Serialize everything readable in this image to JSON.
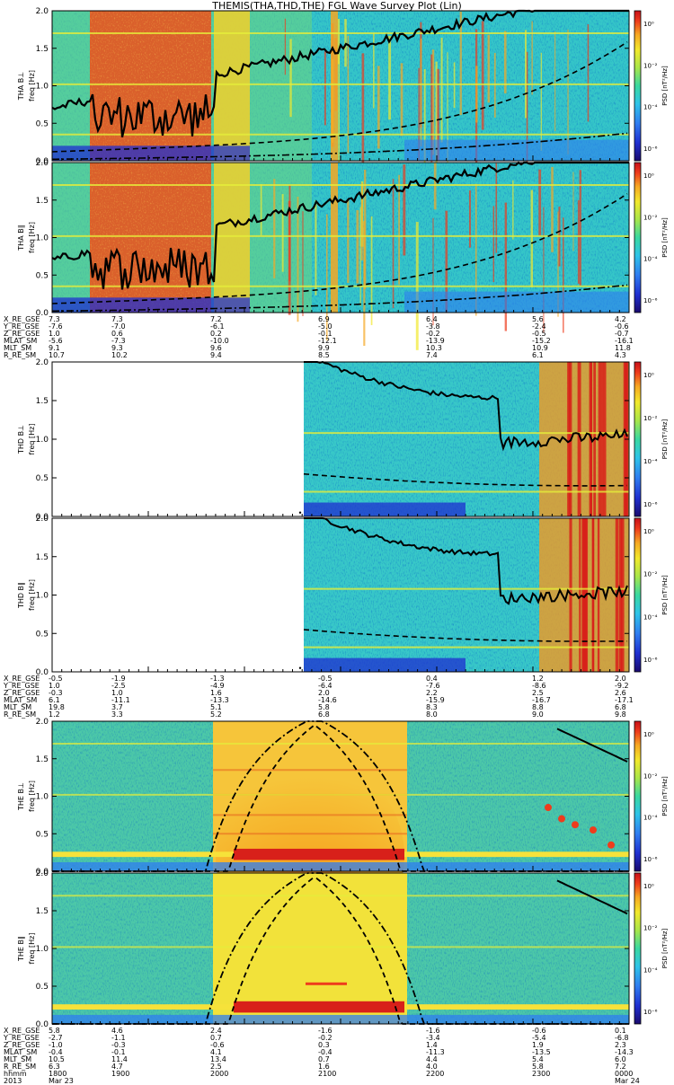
{
  "title": "THEMIS(THA,THD,THE) FGL Wave Survey Plot (Lin)",
  "colorbar_unit": "PSD [nT²/Hz]",
  "colorbar_ticks": [
    "10⁰",
    "10⁻²",
    "10⁻⁴",
    "10⁻⁶"
  ],
  "axis_ylabel": "freq [Hz]",
  "y_ticks": [
    "0.0",
    "0.5",
    "1.0",
    "1.5",
    "2.0"
  ],
  "chart_data": [
    {
      "type": "heatmap",
      "panel_id": "THA B⊥",
      "ylabel": "freq [Hz]",
      "ylim": [
        0,
        2
      ],
      "colorbar": "PSD [nT²/Hz]",
      "lines": [
        "solid",
        "dashed",
        "dash-dot"
      ]
    },
    {
      "type": "heatmap",
      "panel_id": "THA B∥",
      "ylabel": "freq [Hz]",
      "ylim": [
        0,
        2
      ],
      "colorbar": "PSD [nT²/Hz]",
      "lines": [
        "solid",
        "dashed",
        "dash-dot"
      ]
    },
    {
      "type": "heatmap",
      "panel_id": "THD B⊥",
      "ylabel": "freq [Hz]",
      "ylim": [
        0,
        2
      ],
      "colorbar": "PSD [nT²/Hz]",
      "lines": [
        "solid",
        "dashed",
        "dash-dot"
      ]
    },
    {
      "type": "heatmap",
      "panel_id": "THD B∥",
      "ylabel": "freq [Hz]",
      "ylim": [
        0,
        2
      ],
      "colorbar": "PSD [nT²/Hz]",
      "lines": [
        "solid",
        "dashed",
        "dash-dot"
      ]
    },
    {
      "type": "heatmap",
      "panel_id": "THE B⊥",
      "ylabel": "freq [Hz]",
      "ylim": [
        0,
        2
      ],
      "colorbar": "PSD [nT²/Hz]",
      "lines": [
        "solid",
        "dashed",
        "dash-dot"
      ]
    },
    {
      "type": "heatmap",
      "panel_id": "THE B∥",
      "ylabel": "freq [Hz]",
      "ylim": [
        0,
        2
      ],
      "colorbar": "PSD [nT²/Hz]",
      "lines": [
        "solid",
        "dashed",
        "dash-dot"
      ]
    }
  ],
  "ephemeris_blocks": [
    {
      "rows": [
        {
          "label": "X_RE_GSE",
          "values": [
            "7.3",
            "7.3",
            "7.2",
            "6.9",
            "6.4",
            "5.6",
            "4.2"
          ]
        },
        {
          "label": "Y_RE_GSE",
          "values": [
            "-7.6",
            "-7.0",
            "-6.1",
            "-5.0",
            "-3.8",
            "-2.4",
            "-0.6"
          ]
        },
        {
          "label": "Z_RE_GSE",
          "values": [
            "1.0",
            "0.6",
            "0.2",
            "-0.1",
            "-0.2",
            "-0.5",
            "-0.7"
          ]
        },
        {
          "label": "MLAT_SM",
          "values": [
            "-5.6",
            "-7.3",
            "-10.0",
            "-12.1",
            "-13.9",
            "-15.2",
            "-16.1"
          ]
        },
        {
          "label": "MLT_SM",
          "values": [
            "9.1",
            "9.3",
            "9.6",
            "9.9",
            "10.3",
            "10.9",
            "11.8"
          ]
        },
        {
          "label": "R_RE_SM",
          "values": [
            "10.7",
            "10.2",
            "9.4",
            "8.5",
            "7.4",
            "6.1",
            "4.3"
          ]
        }
      ]
    },
    {
      "rows": [
        {
          "label": "X_RE_GSE",
          "values": [
            "-0.5",
            "-1.9",
            "-1.3",
            "-0.5",
            "0.4",
            "1.2",
            "2.0"
          ]
        },
        {
          "label": "Y_RE_GSE",
          "values": [
            "1.0",
            "-2.5",
            "-4.9",
            "-6.4",
            "-7.6",
            "-8.6",
            "-9.2"
          ]
        },
        {
          "label": "Z_RE_GSE",
          "values": [
            "-0.3",
            "1.0",
            "1.6",
            "2.0",
            "2.2",
            "2.5",
            "2.6"
          ]
        },
        {
          "label": "MLAT_SM",
          "values": [
            "6.1",
            "-11.1",
            "-13.3",
            "-14.6",
            "-15.9",
            "-16.7",
            "-17.1"
          ]
        },
        {
          "label": "MLT_SM",
          "values": [
            "19.8",
            "3.7",
            "5.1",
            "5.8",
            "8.3",
            "8.8",
            "6.8"
          ]
        },
        {
          "label": "R_RE_SM",
          "values": [
            "1.2",
            "3.3",
            "5.2",
            "6.8",
            "8.0",
            "9.0",
            "9.8"
          ]
        }
      ]
    },
    {
      "rows": [
        {
          "label": "X_RE_GSE",
          "values": [
            "5.8",
            "4.6",
            "2.4",
            "-1.6",
            "-1.6",
            "-0.6",
            "0.1"
          ]
        },
        {
          "label": "Y_RE_GSE",
          "values": [
            "-2.7",
            "-1.1",
            "0.7",
            "-0.2",
            "-3.4",
            "-5.4",
            "-6.8"
          ]
        },
        {
          "label": "Z_RE_GSE",
          "values": [
            "-1.0",
            "-0.3",
            "-0.6",
            "0.3",
            "1.4",
            "1.9",
            "2.3"
          ]
        },
        {
          "label": "MLAT_SM",
          "values": [
            "-0.4",
            "-0.1",
            "4.1",
            "-0.4",
            "-11.3",
            "-13.5",
            "-14.3"
          ]
        },
        {
          "label": "MLT_SM",
          "values": [
            "10.5",
            "11.4",
            "13.4",
            "0.7",
            "4.4",
            "5.4",
            "6.0"
          ]
        },
        {
          "label": "R_RE_SM",
          "values": [
            "6.3",
            "4.7",
            "2.5",
            "1.6",
            "4.0",
            "5.8",
            "7.2"
          ]
        },
        {
          "label": "hhmm",
          "values": [
            "1800",
            "1900",
            "2000",
            "2100",
            "2200",
            "2300",
            "0000"
          ]
        },
        {
          "label": "2013",
          "values": [
            "Mar 23",
            "",
            "",
            "",
            "",
            "",
            "Mar 24"
          ]
        }
      ]
    }
  ],
  "colors": {
    "cmap": [
      "#1a0a6e",
      "#1f2fd0",
      "#2f7df0",
      "#2ec4e8",
      "#3ad8a0",
      "#a8e64a",
      "#f2e82c",
      "#f6a823",
      "#ee3c1c",
      "#c8101a"
    ]
  }
}
